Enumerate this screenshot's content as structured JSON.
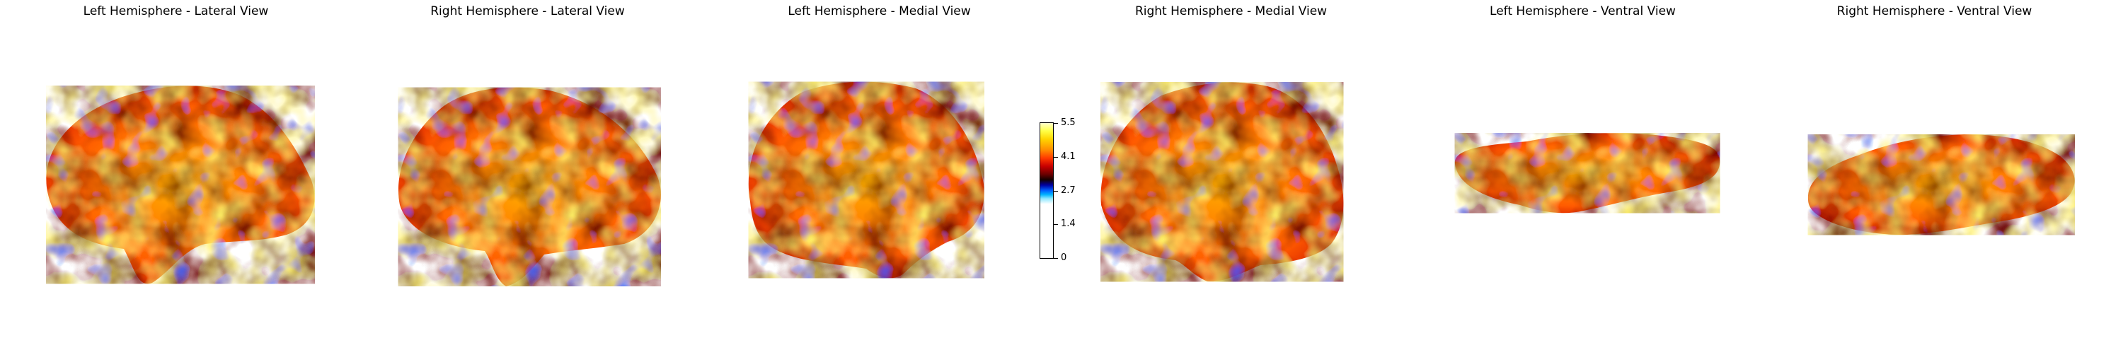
{
  "panels": [
    {
      "title": "Left Hemisphere - Lateral View"
    },
    {
      "title": "Right Hemisphere - Lateral View"
    },
    {
      "title": "Left Hemisphere - Medial View"
    },
    {
      "title": "Right Hemisphere - Medial View"
    },
    {
      "title": "Left Hemisphere - Ventral View"
    },
    {
      "title": "Right Hemisphere - Ventral View"
    }
  ],
  "colorbar": {
    "colormap": "cold-hot",
    "ticks": [
      "5.5",
      "4.1",
      "2.7",
      "1.4",
      "0"
    ]
  },
  "colors": {
    "hot_high": "#ffff66",
    "hot_mid": "#ff6600",
    "hot_low": "#cc0000",
    "dark": "#300000",
    "cold": "#0066ff"
  }
}
